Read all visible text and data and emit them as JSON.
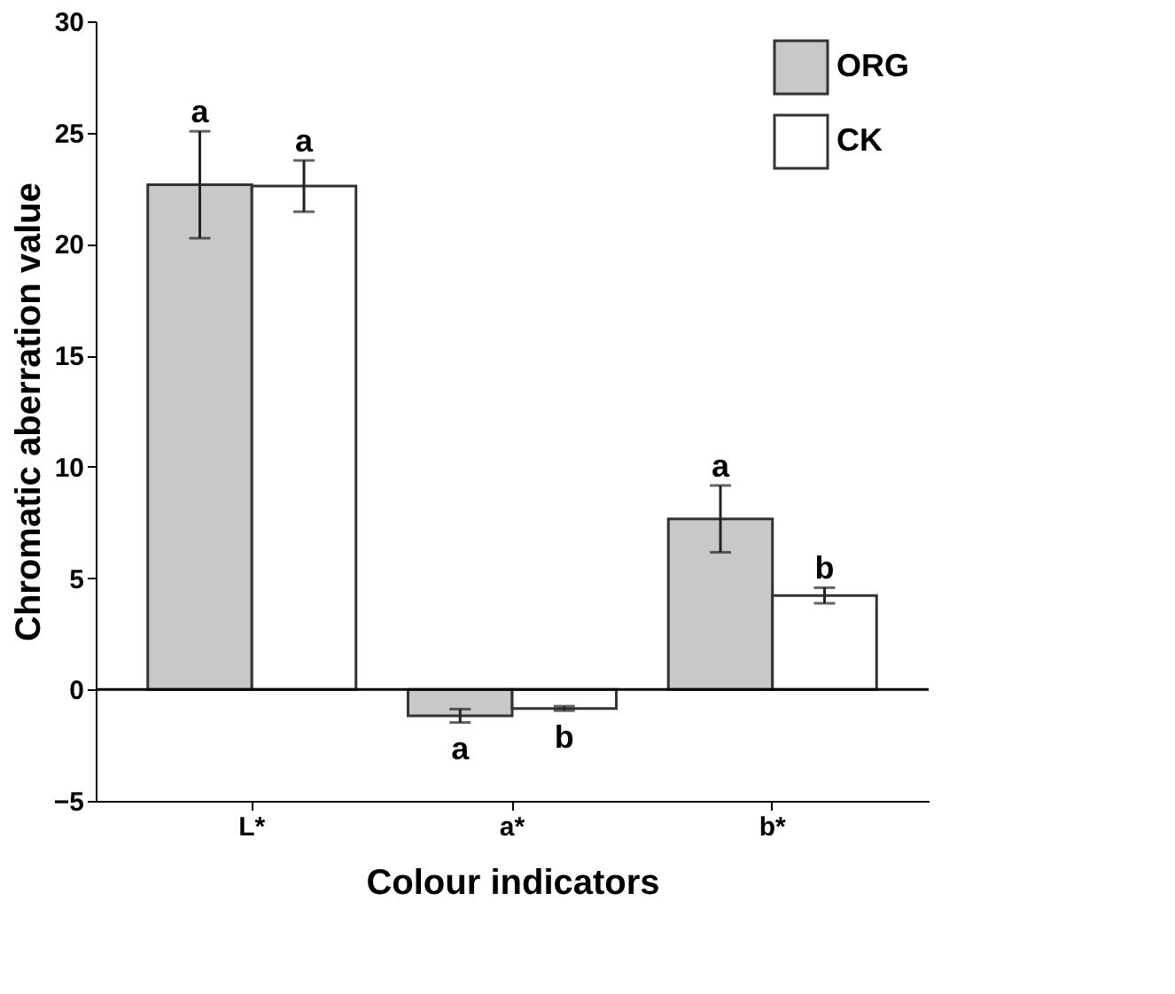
{
  "chart_data": {
    "type": "bar",
    "xlabel": "Colour indicators",
    "ylabel": "Chromatic aberration value",
    "categories": [
      "L*",
      "a*",
      "b*"
    ],
    "series": [
      {
        "name": "ORG",
        "color": "#c8c8c8",
        "values": [
          22.66,
          -1.18,
          7.66
        ],
        "errors": [
          2.4,
          0.3,
          1.5
        ]
      },
      {
        "name": "CK",
        "color": "#ffffff",
        "values": [
          22.6,
          -0.85,
          4.22
        ],
        "errors": [
          1.15,
          0.1,
          0.35
        ]
      }
    ],
    "ylim": [
      -5,
      30
    ],
    "yticks": [
      -5,
      0,
      5,
      10,
      15,
      20,
      25,
      30
    ],
    "grid": false,
    "legend": "top right",
    "ref_lines": [
      {
        "axis": "y",
        "value": 0,
        "color": "#000000"
      }
    ],
    "annotations": [
      {
        "text": "a",
        "x": "L*",
        "y": 22.66
      },
      {
        "text": "a",
        "x": "L*",
        "y": 22.6
      },
      {
        "text": "a",
        "x": "a*",
        "y": -1.18
      },
      {
        "text": "b",
        "x": "a*",
        "y": -0.85
      },
      {
        "text": "a",
        "x": "b*",
        "y": 7.66
      },
      {
        "text": "b",
        "x": "b*",
        "y": 4.22
      }
    ]
  }
}
